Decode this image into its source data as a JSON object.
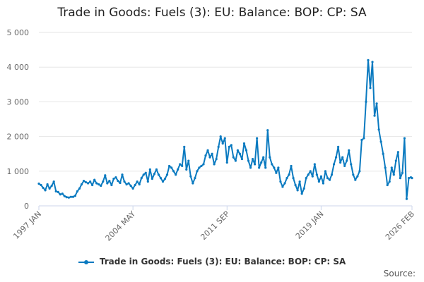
{
  "chart_data": {
    "type": "line",
    "title": "Trade in Goods: Fuels (3): EU: Balance: BOP: CP: SA",
    "xlabel": "",
    "ylabel": "",
    "x_tick_labels": [
      "1997 JAN",
      "2004 MAY",
      "2011 SEP",
      "2019 JAN",
      "2026 FEB"
    ],
    "y_ticks": [
      0,
      1000,
      2000,
      3000,
      4000,
      5000
    ],
    "y_tick_labels": [
      "0",
      "1 000",
      "2 000",
      "3 000",
      "4 000",
      "5 000"
    ],
    "ylim": [
      0,
      5000
    ],
    "x_range": [
      "1997-01",
      "2026-02"
    ],
    "grid": "horizontal",
    "legend_position": "bottom",
    "series": [
      {
        "name": "Trade in Goods: Fuels (3): EU: Balance: BOP: CP: SA",
        "color": "#0a7ac0",
        "points": [
          [
            "1997-01",
            640
          ],
          [
            "1997-03",
            600
          ],
          [
            "1997-05",
            520
          ],
          [
            "1997-07",
            450
          ],
          [
            "1997-09",
            620
          ],
          [
            "1997-11",
            500
          ],
          [
            "1998-01",
            580
          ],
          [
            "1998-03",
            700
          ],
          [
            "1998-05",
            420
          ],
          [
            "1998-07",
            400
          ],
          [
            "1998-09",
            330
          ],
          [
            "1998-11",
            350
          ],
          [
            "1999-01",
            280
          ],
          [
            "1999-03",
            250
          ],
          [
            "1999-05",
            240
          ],
          [
            "1999-07",
            260
          ],
          [
            "1999-09",
            260
          ],
          [
            "1999-11",
            290
          ],
          [
            "2000-01",
            420
          ],
          [
            "2000-03",
            500
          ],
          [
            "2000-05",
            620
          ],
          [
            "2000-07",
            720
          ],
          [
            "2000-09",
            680
          ],
          [
            "2000-11",
            650
          ],
          [
            "2001-01",
            700
          ],
          [
            "2001-03",
            600
          ],
          [
            "2001-05",
            750
          ],
          [
            "2001-07",
            650
          ],
          [
            "2001-09",
            620
          ],
          [
            "2001-11",
            580
          ],
          [
            "2002-01",
            700
          ],
          [
            "2002-03",
            880
          ],
          [
            "2002-05",
            650
          ],
          [
            "2002-07",
            720
          ],
          [
            "2002-09",
            600
          ],
          [
            "2002-11",
            780
          ],
          [
            "2003-01",
            820
          ],
          [
            "2003-03",
            720
          ],
          [
            "2003-05",
            660
          ],
          [
            "2003-07",
            900
          ],
          [
            "2003-09",
            700
          ],
          [
            "2003-11",
            620
          ],
          [
            "2004-01",
            650
          ],
          [
            "2004-03",
            580
          ],
          [
            "2004-05",
            500
          ],
          [
            "2004-07",
            600
          ],
          [
            "2004-09",
            700
          ],
          [
            "2004-11",
            620
          ],
          [
            "2005-01",
            800
          ],
          [
            "2005-03",
            900
          ],
          [
            "2005-05",
            950
          ],
          [
            "2005-07",
            700
          ],
          [
            "2005-09",
            1050
          ],
          [
            "2005-11",
            780
          ],
          [
            "2006-01",
            920
          ],
          [
            "2006-03",
            1050
          ],
          [
            "2006-05",
            900
          ],
          [
            "2006-07",
            800
          ],
          [
            "2006-09",
            700
          ],
          [
            "2006-11",
            780
          ],
          [
            "2007-01",
            900
          ],
          [
            "2007-03",
            1150
          ],
          [
            "2007-05",
            1100
          ],
          [
            "2007-07",
            1000
          ],
          [
            "2007-09",
            900
          ],
          [
            "2007-11",
            1050
          ],
          [
            "2008-01",
            1200
          ],
          [
            "2008-03",
            1150
          ],
          [
            "2008-05",
            1700
          ],
          [
            "2008-07",
            1050
          ],
          [
            "2008-09",
            1300
          ],
          [
            "2008-11",
            850
          ],
          [
            "2009-01",
            650
          ],
          [
            "2009-03",
            800
          ],
          [
            "2009-05",
            1000
          ],
          [
            "2009-07",
            1100
          ],
          [
            "2009-09",
            1150
          ],
          [
            "2009-11",
            1200
          ],
          [
            "2010-01",
            1450
          ],
          [
            "2010-03",
            1600
          ],
          [
            "2010-05",
            1400
          ],
          [
            "2010-07",
            1500
          ],
          [
            "2010-09",
            1200
          ],
          [
            "2010-11",
            1350
          ],
          [
            "2011-01",
            1700
          ],
          [
            "2011-03",
            2000
          ],
          [
            "2011-05",
            1800
          ],
          [
            "2011-07",
            1950
          ],
          [
            "2011-09",
            1250
          ],
          [
            "2011-11",
            1700
          ],
          [
            "2012-01",
            1750
          ],
          [
            "2012-03",
            1400
          ],
          [
            "2012-05",
            1300
          ],
          [
            "2012-07",
            1600
          ],
          [
            "2012-09",
            1500
          ],
          [
            "2012-11",
            1350
          ],
          [
            "2013-01",
            1800
          ],
          [
            "2013-03",
            1600
          ],
          [
            "2013-05",
            1300
          ],
          [
            "2013-07",
            1100
          ],
          [
            "2013-09",
            1350
          ],
          [
            "2013-11",
            1200
          ],
          [
            "2014-01",
            1950
          ],
          [
            "2014-03",
            1100
          ],
          [
            "2014-05",
            1250
          ],
          [
            "2014-07",
            1400
          ],
          [
            "2014-09",
            1100
          ],
          [
            "2014-11",
            2180
          ],
          [
            "2015-01",
            1400
          ],
          [
            "2015-03",
            1200
          ],
          [
            "2015-05",
            1100
          ],
          [
            "2015-07",
            950
          ],
          [
            "2015-09",
            1100
          ],
          [
            "2015-11",
            700
          ],
          [
            "2016-01",
            550
          ],
          [
            "2016-03",
            650
          ],
          [
            "2016-05",
            800
          ],
          [
            "2016-07",
            900
          ],
          [
            "2016-09",
            1150
          ],
          [
            "2016-11",
            800
          ],
          [
            "2017-01",
            600
          ],
          [
            "2017-03",
            450
          ],
          [
            "2017-05",
            700
          ],
          [
            "2017-07",
            350
          ],
          [
            "2017-09",
            500
          ],
          [
            "2017-11",
            800
          ],
          [
            "2018-01",
            900
          ],
          [
            "2018-03",
            1000
          ],
          [
            "2018-05",
            850
          ],
          [
            "2018-07",
            1200
          ],
          [
            "2018-09",
            900
          ],
          [
            "2018-11",
            700
          ],
          [
            "2019-01",
            850
          ],
          [
            "2019-03",
            650
          ],
          [
            "2019-05",
            1000
          ],
          [
            "2019-07",
            800
          ],
          [
            "2019-09",
            750
          ],
          [
            "2019-11",
            900
          ],
          [
            "2020-01",
            1200
          ],
          [
            "2020-03",
            1400
          ],
          [
            "2020-05",
            1700
          ],
          [
            "2020-07",
            1250
          ],
          [
            "2020-09",
            1400
          ],
          [
            "2020-11",
            1150
          ],
          [
            "2021-01",
            1300
          ],
          [
            "2021-03",
            1600
          ],
          [
            "2021-05",
            1200
          ],
          [
            "2021-07",
            900
          ],
          [
            "2021-09",
            750
          ],
          [
            "2021-11",
            850
          ],
          [
            "2022-01",
            1000
          ],
          [
            "2022-03",
            1900
          ],
          [
            "2022-05",
            1950
          ],
          [
            "2022-07",
            3000
          ],
          [
            "2022-09",
            4200
          ],
          [
            "2022-11",
            3400
          ],
          [
            "2023-01",
            4150
          ],
          [
            "2023-03",
            2600
          ],
          [
            "2023-05",
            2950
          ],
          [
            "2023-07",
            2200
          ],
          [
            "2023-09",
            1850
          ],
          [
            "2023-11",
            1500
          ],
          [
            "2024-01",
            1100
          ],
          [
            "2024-03",
            600
          ],
          [
            "2024-05",
            700
          ],
          [
            "2024-07",
            1100
          ],
          [
            "2024-09",
            900
          ],
          [
            "2024-11",
            1300
          ],
          [
            "2025-01",
            1550
          ],
          [
            "2025-03",
            800
          ],
          [
            "2025-05",
            950
          ],
          [
            "2025-07",
            1950
          ],
          [
            "2025-09",
            200
          ],
          [
            "2025-11",
            800
          ],
          [
            "2026-01",
            820
          ],
          [
            "2026-02",
            800
          ]
        ]
      }
    ]
  },
  "legend": {
    "label": "Trade in Goods: Fuels (3): EU: Balance: BOP: CP: SA"
  },
  "footer": {
    "source_label": "Source:"
  }
}
